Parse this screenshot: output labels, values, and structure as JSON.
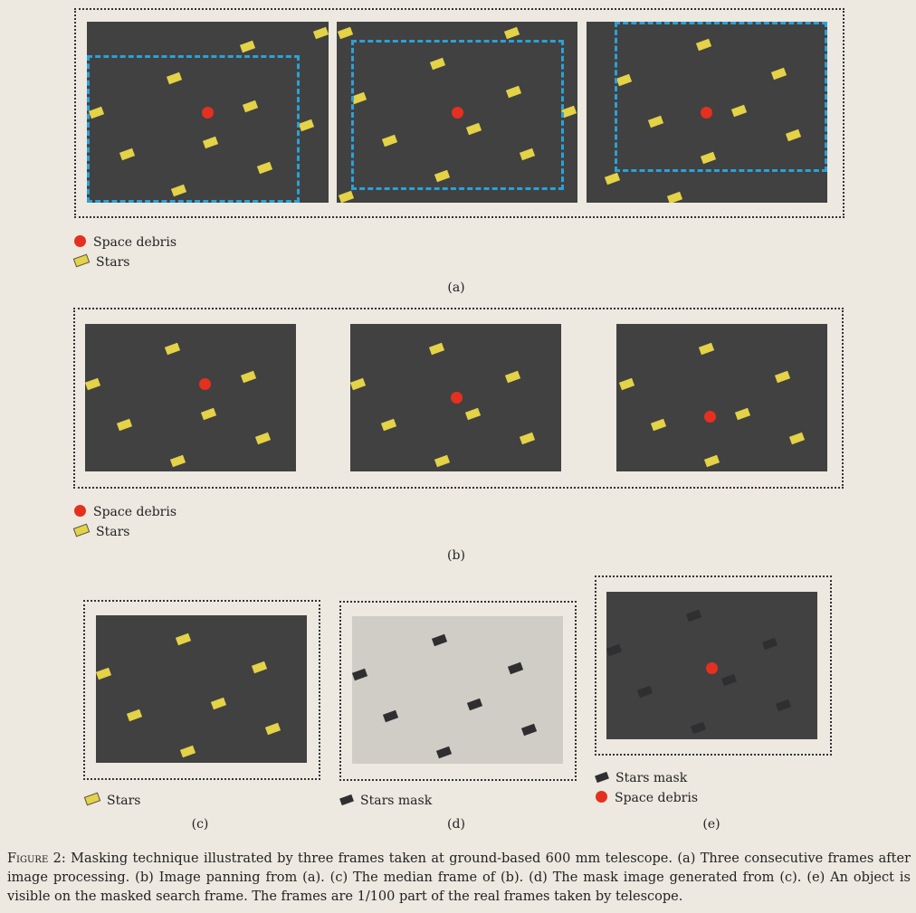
{
  "legends": {
    "space_debris": "Space debris",
    "stars": "Stars",
    "stars_mask": "Stars mask"
  },
  "panels": {
    "a": "(a)",
    "b": "(b)",
    "c": "(c)",
    "d": "(d)",
    "e": "(e)"
  },
  "caption": {
    "label": "Figure 2:",
    "text": "Masking technique illustrated by three frames taken at ground-based 600 mm telescope. (a) Three consecutive frames after image processing. (b) Image panning from (a). (c) The median frame of (b). (d) The mask image generated from (c). (e) An object is visible on the masked search frame. The frames are 1/100 part of the real frames taken by telescope."
  },
  "colors": {
    "background": "#ede8e0",
    "frame": "#414141",
    "median_mask_frame": "#cfcdc6",
    "star": "#e4d247",
    "debris": "#e5301f",
    "crop_outline": "#2aa1d9",
    "mask": "#2f2f31"
  }
}
